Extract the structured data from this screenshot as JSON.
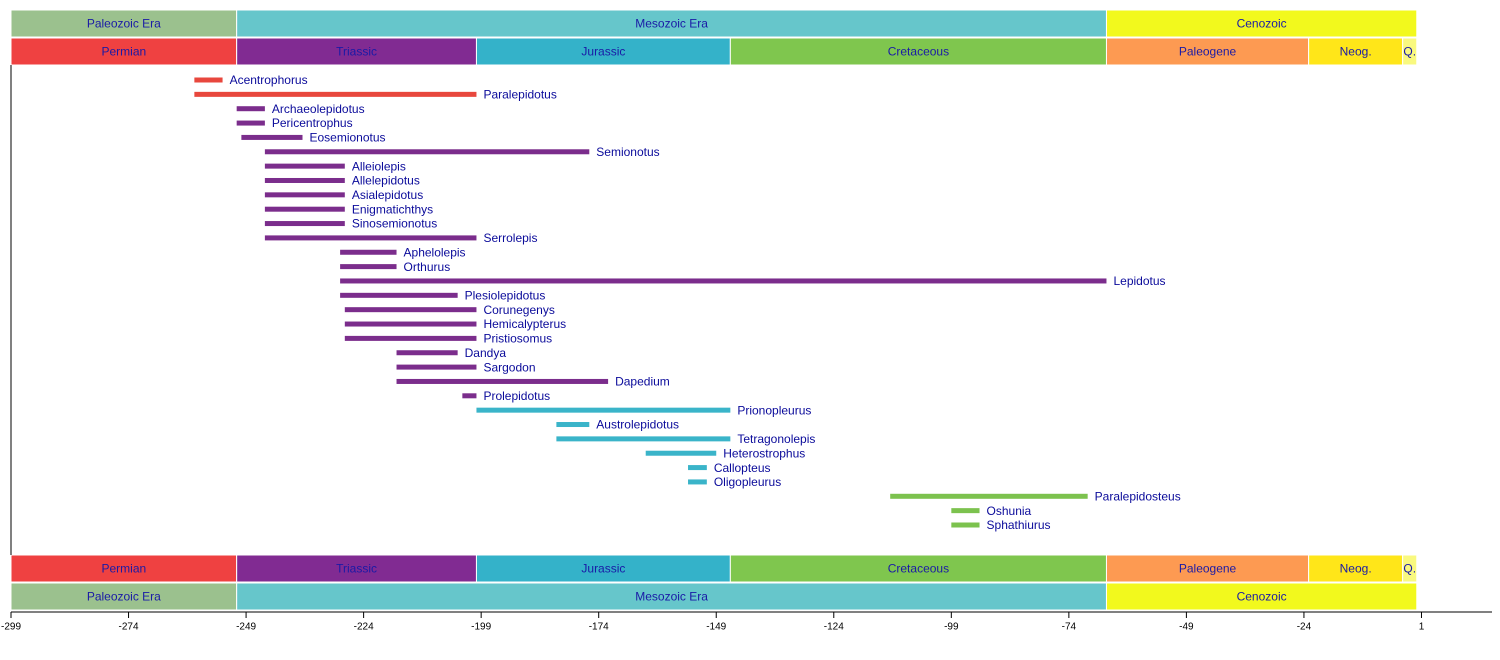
{
  "chart_data": {
    "type": "timeline",
    "xlim": [
      -299,
      16
    ],
    "xticks": [
      -299,
      -274,
      -249,
      -224,
      -199,
      -174,
      -149,
      -124,
      -99,
      -74,
      -49,
      -24,
      1
    ],
    "eras": [
      {
        "label": "Paleozoic Era",
        "start": -299,
        "end": -251,
        "color": "#9bc18e"
      },
      {
        "label": "Mesozoic Era",
        "start": -251,
        "end": -66,
        "color": "#66c6cb"
      },
      {
        "label": "Cenozoic",
        "start": -66,
        "end": 0,
        "color": "#f2f91d"
      }
    ],
    "periods": [
      {
        "label": "Permian",
        "start": -299,
        "end": -251,
        "color": "#ef4141"
      },
      {
        "label": "Triassic",
        "start": -251,
        "end": -200,
        "color": "#812b92"
      },
      {
        "label": "Jurassic",
        "start": -200,
        "end": -146,
        "color": "#34b2c9"
      },
      {
        "label": "Cretaceous",
        "start": -146,
        "end": -66,
        "color": "#7fc64e"
      },
      {
        "label": "Paleogene",
        "start": -66,
        "end": -23,
        "color": "#fd9a52"
      },
      {
        "label": "Neog.",
        "start": -23,
        "end": -3,
        "color": "#ffe619"
      },
      {
        "label": "Q.",
        "start": -3,
        "end": 0,
        "color": "#f9f97f"
      }
    ],
    "bars": [
      {
        "label": "Acentrophorus",
        "start": -260,
        "end": -254,
        "color": "#e8473d"
      },
      {
        "label": "Paralepidotus",
        "start": -260,
        "end": -200,
        "color": "#e8473d"
      },
      {
        "label": "Archaeolepidotus",
        "start": -251,
        "end": -245,
        "color": "#7b2d8c"
      },
      {
        "label": "Pericentrophus",
        "start": -251,
        "end": -245,
        "color": "#7b2d8c"
      },
      {
        "label": "Eosemionotus",
        "start": -250,
        "end": -237,
        "color": "#7b2d8c"
      },
      {
        "label": "Semionotus",
        "start": -245,
        "end": -176,
        "color": "#7b2d8c"
      },
      {
        "label": "Alleiolepis",
        "start": -245,
        "end": -228,
        "color": "#7b2d8c"
      },
      {
        "label": "Allelepidotus",
        "start": -245,
        "end": -228,
        "color": "#7b2d8c"
      },
      {
        "label": "Asialepidotus",
        "start": -245,
        "end": -228,
        "color": "#7b2d8c"
      },
      {
        "label": "Enigmatichthys",
        "start": -245,
        "end": -228,
        "color": "#7b2d8c"
      },
      {
        "label": "Sinosemionotus",
        "start": -245,
        "end": -228,
        "color": "#7b2d8c"
      },
      {
        "label": "Serrolepis",
        "start": -245,
        "end": -200,
        "color": "#7b2d8c"
      },
      {
        "label": "Aphelolepis",
        "start": -229,
        "end": -217,
        "color": "#7b2d8c"
      },
      {
        "label": "Orthurus",
        "start": -229,
        "end": -217,
        "color": "#7b2d8c"
      },
      {
        "label": "Lepidotus",
        "start": -229,
        "end": -66,
        "color": "#7b2d8c"
      },
      {
        "label": "Plesiolepidotus",
        "start": -229,
        "end": -204,
        "color": "#7b2d8c"
      },
      {
        "label": "Corunegenys",
        "start": -228,
        "end": -200,
        "color": "#7b2d8c"
      },
      {
        "label": "Hemicalypterus",
        "start": -228,
        "end": -200,
        "color": "#7b2d8c"
      },
      {
        "label": "Pristiosomus",
        "start": -228,
        "end": -200,
        "color": "#7b2d8c"
      },
      {
        "label": "Dandya",
        "start": -217,
        "end": -204,
        "color": "#7b2d8c"
      },
      {
        "label": "Sargodon",
        "start": -217,
        "end": -200,
        "color": "#7b2d8c"
      },
      {
        "label": "Dapedium",
        "start": -217,
        "end": -172,
        "color": "#7b2d8c"
      },
      {
        "label": "Prolepidotus",
        "start": -203,
        "end": -200,
        "color": "#7b2d8c"
      },
      {
        "label": "Prionopleurus",
        "start": -200,
        "end": -146,
        "color": "#3ab4c9"
      },
      {
        "label": "Austrolepidotus",
        "start": -183,
        "end": -176,
        "color": "#3ab4c9"
      },
      {
        "label": "Tetragonolepis",
        "start": -183,
        "end": -146,
        "color": "#3ab4c9"
      },
      {
        "label": "Heterostrophus",
        "start": -164,
        "end": -149,
        "color": "#3ab4c9"
      },
      {
        "label": "Callopteus",
        "start": -155,
        "end": -151,
        "color": "#3ab4c9"
      },
      {
        "label": "Oligopleurus",
        "start": -155,
        "end": -151,
        "color": "#3ab4c9"
      },
      {
        "label": "Paralepidosteus",
        "start": -112,
        "end": -70,
        "color": "#7cc24e"
      },
      {
        "label": "Oshunia",
        "start": -99,
        "end": -93,
        "color": "#7cc24e"
      },
      {
        "label": "Sphathiurus",
        "start": -99,
        "end": -93,
        "color": "#7cc24e"
      }
    ]
  }
}
